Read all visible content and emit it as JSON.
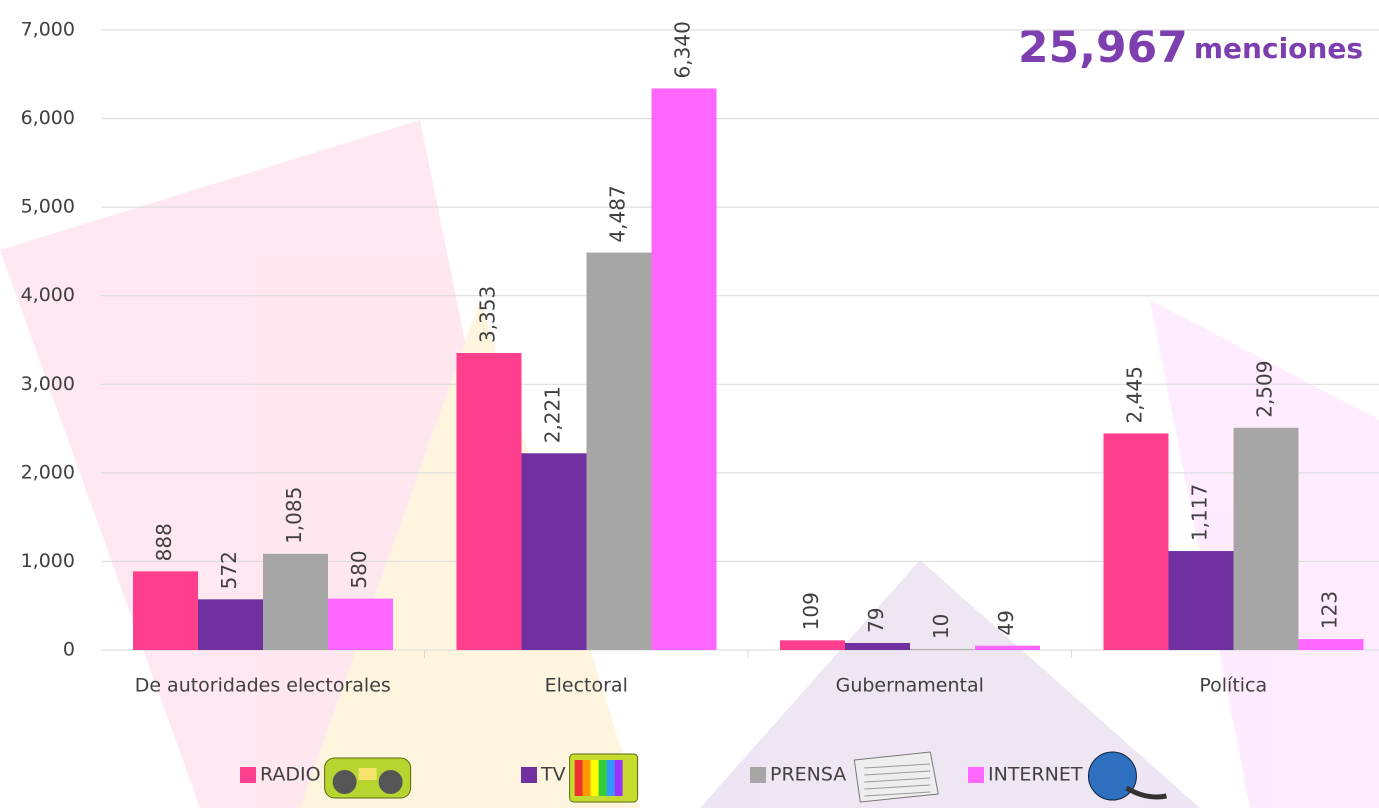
{
  "chart_data": {
    "type": "bar",
    "annotation": {
      "value": "25,967",
      "unit": "menciones"
    },
    "categories": [
      "De autoridades electorales",
      "Electoral",
      "Gubernamental",
      "Política"
    ],
    "series": [
      {
        "name": "RADIO",
        "color": "#ff3f8e",
        "values": [
          888,
          3353,
          109,
          2445
        ],
        "value_labels": [
          "888",
          "3,353",
          "109",
          "2,445"
        ]
      },
      {
        "name": "TV",
        "color": "#7030a0",
        "values": [
          572,
          2221,
          79,
          1117
        ],
        "value_labels": [
          "572",
          "2,221",
          "79",
          "1,117"
        ]
      },
      {
        "name": "PRENSA",
        "color": "#a6a6a6",
        "values": [
          1085,
          4487,
          10,
          2509
        ],
        "value_labels": [
          "1,085",
          "4,487",
          "10",
          "2,509"
        ]
      },
      {
        "name": "INTERNET",
        "color": "#ff66ff",
        "values": [
          580,
          6340,
          49,
          123
        ],
        "value_labels": [
          "580",
          "6,340",
          "49",
          "123"
        ]
      }
    ],
    "ylim": [
      0,
      7000
    ],
    "yticks": [
      0,
      {
        "value": 1000,
        "label": "1,000"
      },
      {
        "value": 2000,
        "label": "2,000"
      },
      {
        "value": 3000,
        "label": "3,000"
      },
      {
        "value": 4000,
        "label": "4,000"
      },
      {
        "value": 5000,
        "label": "5,000"
      },
      {
        "value": 6000,
        "label": "6,000"
      },
      {
        "value": 7000,
        "label": "7,000"
      }
    ],
    "grid": true,
    "legend": "bottom"
  }
}
